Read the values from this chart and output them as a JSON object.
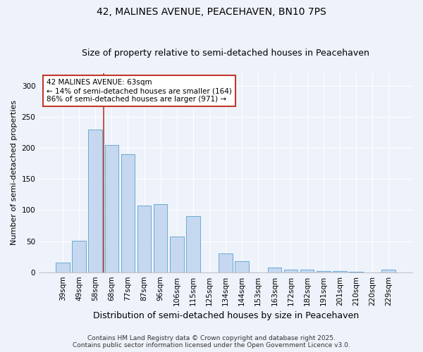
{
  "title": "42, MALINES AVENUE, PEACEHAVEN, BN10 7PS",
  "subtitle": "Size of property relative to semi-detached houses in Peacehaven",
  "xlabel": "Distribution of semi-detached houses by size in Peacehaven",
  "ylabel": "Number of semi-detached properties",
  "categories": [
    "39sqm",
    "49sqm",
    "58sqm",
    "68sqm",
    "77sqm",
    "87sqm",
    "96sqm",
    "106sqm",
    "115sqm",
    "125sqm",
    "134sqm",
    "144sqm",
    "153sqm",
    "163sqm",
    "172sqm",
    "182sqm",
    "191sqm",
    "201sqm",
    "210sqm",
    "220sqm",
    "229sqm"
  ],
  "values": [
    15,
    51,
    230,
    205,
    190,
    107,
    109,
    57,
    90,
    0,
    30,
    18,
    0,
    7,
    4,
    4,
    2,
    2,
    1,
    0,
    4
  ],
  "bar_color": "#c5d8f0",
  "bar_edge_color": "#6aaad4",
  "vline_color": "#c0392b",
  "vline_index": 2,
  "annotation_text": "42 MALINES AVENUE: 63sqm\n← 14% of semi-detached houses are smaller (164)\n86% of semi-detached houses are larger (971) →",
  "annotation_box_facecolor": "#ffffff",
  "annotation_box_edgecolor": "#c0392b",
  "ylim": [
    0,
    320
  ],
  "yticks": [
    0,
    50,
    100,
    150,
    200,
    250,
    300
  ],
  "footer_line1": "Contains HM Land Registry data © Crown copyright and database right 2025.",
  "footer_line2": "Contains public sector information licensed under the Open Government Licence v3.0.",
  "title_fontsize": 10,
  "subtitle_fontsize": 9,
  "xlabel_fontsize": 9,
  "ylabel_fontsize": 8,
  "tick_fontsize": 7.5,
  "annotation_fontsize": 7.5,
  "footer_fontsize": 6.5,
  "background_color": "#eef2fa"
}
